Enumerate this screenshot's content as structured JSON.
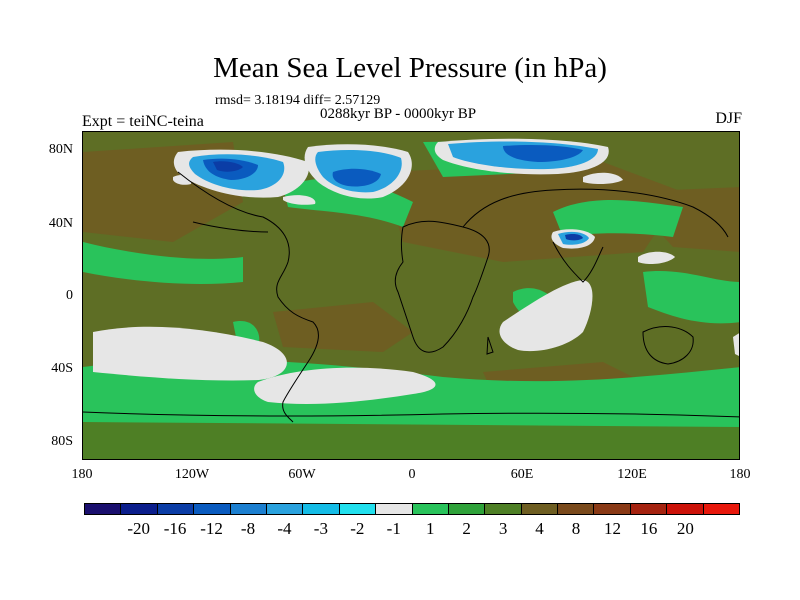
{
  "title": "Mean Sea Level Pressure (in hPa)",
  "stats": "rmsd= 3.18194 diff= 2.57129",
  "period": "0288kyr BP - 0000kyr BP",
  "expt": "Expt = teiNC-teina",
  "season": "DJF",
  "lat_labels": [
    "80N",
    "40N",
    "0",
    "40S",
    "80S"
  ],
  "lon_labels": [
    "180",
    "120W",
    "60W",
    "0",
    "60E",
    "120E",
    "180"
  ],
  "legend": {
    "colors": [
      "#1a0f6e",
      "#0b1e8c",
      "#0b3da6",
      "#0a5bbf",
      "#1c7fd0",
      "#2aa2de",
      "#14bce6",
      "#22e0ee",
      "#e6e6e6",
      "#29c35b",
      "#2fa23a",
      "#4e7f25",
      "#6e5e22",
      "#7a4a1c",
      "#8a3a16",
      "#a52310",
      "#cc1209",
      "#e8180c"
    ],
    "labels": [
      "-20",
      "-16",
      "-12",
      "-8",
      "-4",
      "-3",
      "-2",
      "-1",
      "1",
      "2",
      "3",
      "4",
      "8",
      "12",
      "16",
      "20"
    ]
  }
}
